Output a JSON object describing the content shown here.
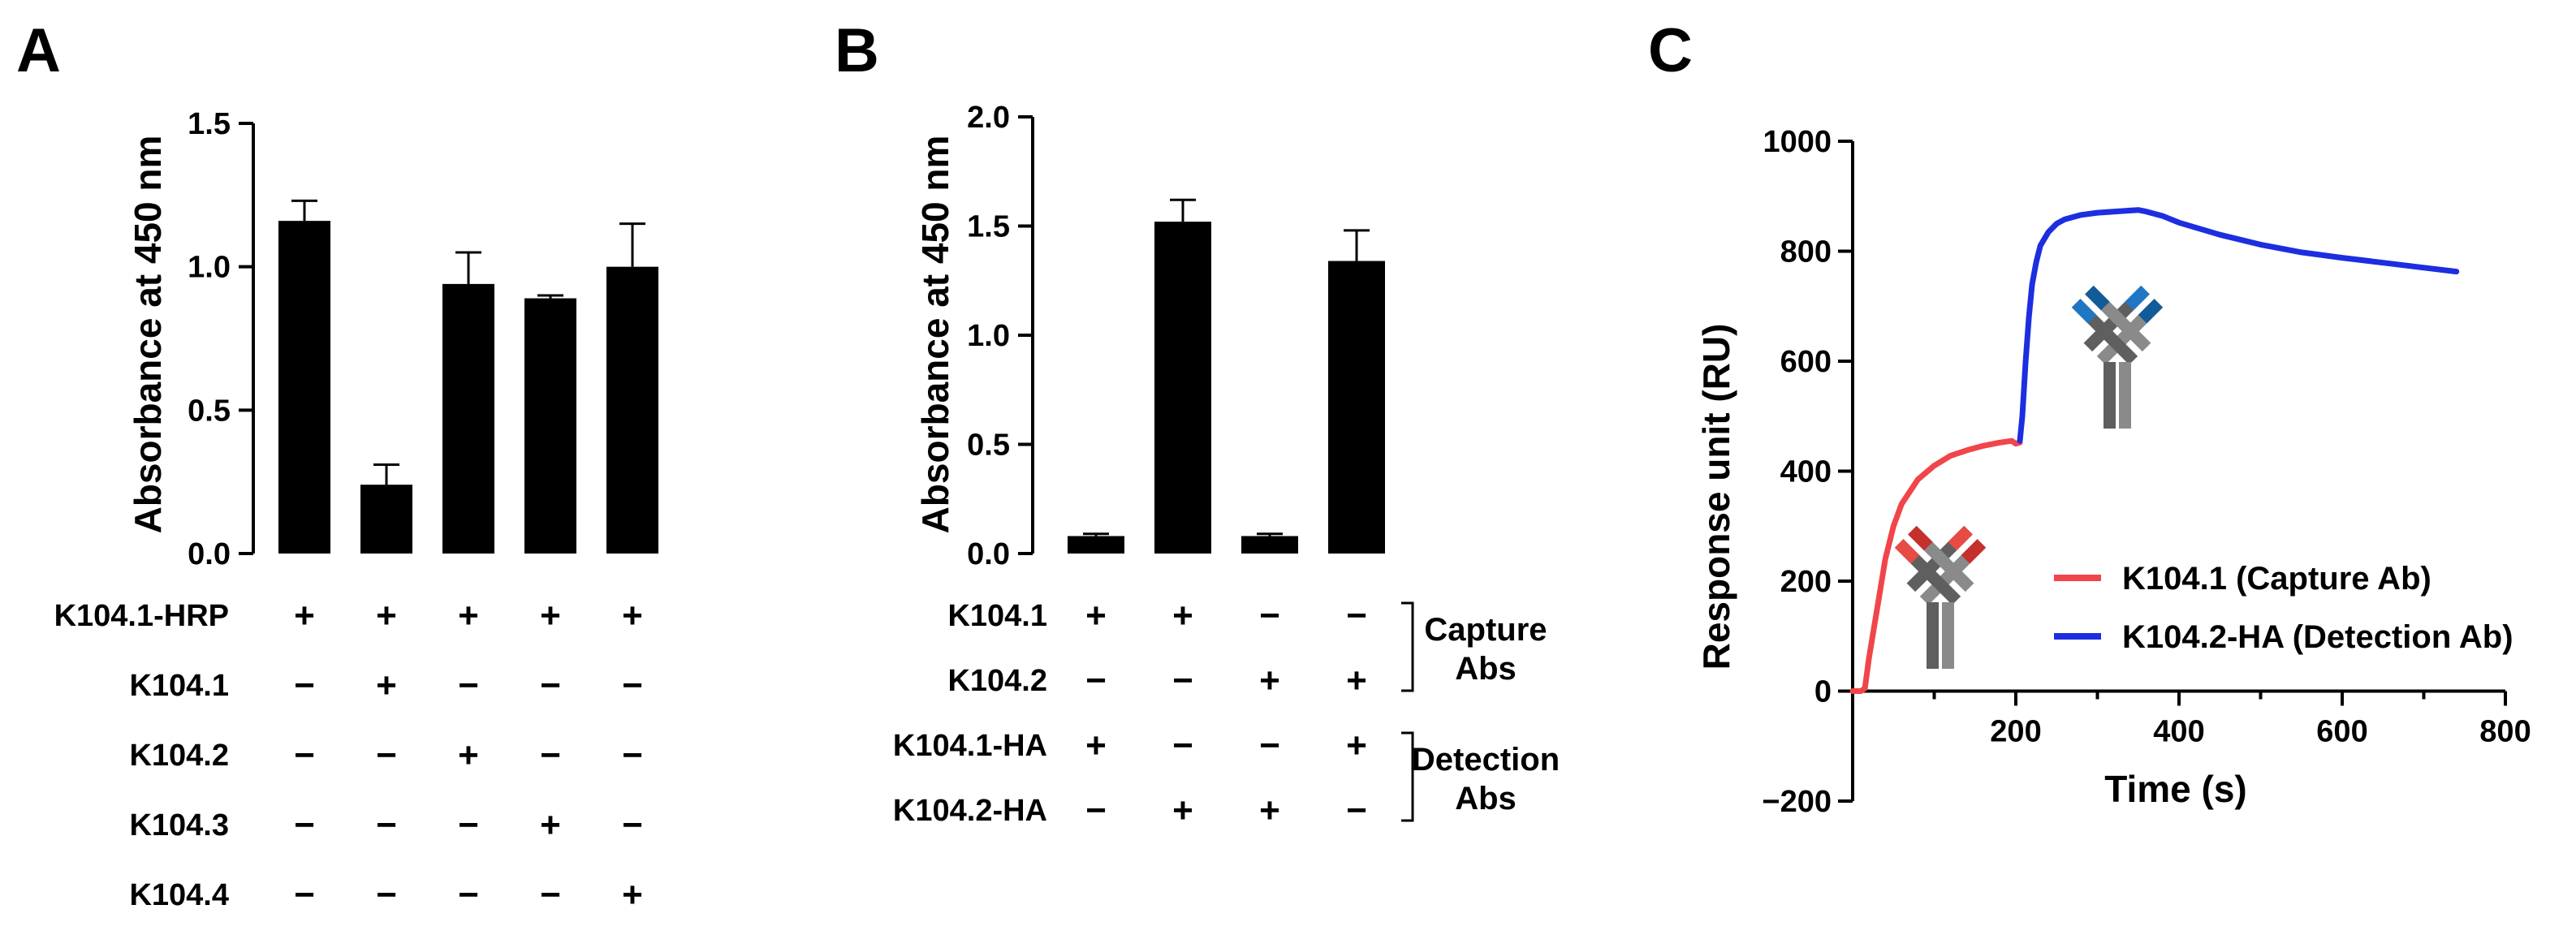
{
  "panels": {
    "a": "A",
    "b": "B",
    "c": "C"
  },
  "chart_data": [
    {
      "type": "bar",
      "panel": "A",
      "ylabel": "Absorbance at 450 nm",
      "ylim": [
        0,
        1.5
      ],
      "yticks": [
        "0.0",
        "0.5",
        "1.0",
        "1.5"
      ],
      "values": [
        1.16,
        0.24,
        0.94,
        0.89,
        1.0
      ],
      "errors": [
        0.07,
        0.07,
        0.11,
        0.01,
        0.15
      ],
      "bar_color": "#000000",
      "table": {
        "rows": [
          {
            "label": "K104.1-HRP",
            "signs": [
              "+",
              "+",
              "+",
              "+",
              "+"
            ]
          },
          {
            "label": "K104.1",
            "signs": [
              "−",
              "+",
              "−",
              "−",
              "−"
            ]
          },
          {
            "label": "K104.2",
            "signs": [
              "−",
              "−",
              "+",
              "−",
              "−"
            ]
          },
          {
            "label": "K104.3",
            "signs": [
              "−",
              "−",
              "−",
              "+",
              "−"
            ]
          },
          {
            "label": "K104.4",
            "signs": [
              "−",
              "−",
              "−",
              "−",
              "+"
            ]
          }
        ]
      }
    },
    {
      "type": "bar",
      "panel": "B",
      "ylabel": "Absorbance at 450 nm",
      "ylim": [
        0,
        2.0
      ],
      "yticks": [
        "0.0",
        "0.5",
        "1.0",
        "1.5",
        "2.0"
      ],
      "values": [
        0.08,
        1.52,
        0.08,
        1.34
      ],
      "errors": [
        0.01,
        0.1,
        0.01,
        0.14
      ],
      "bar_color": "#000000",
      "table": {
        "rows": [
          {
            "label": "K104.1",
            "signs": [
              "+",
              "+",
              "−",
              "−"
            ]
          },
          {
            "label": "K104.2",
            "signs": [
              "−",
              "−",
              "+",
              "+"
            ]
          },
          {
            "label": "K104.1-HA",
            "signs": [
              "+",
              "−",
              "−",
              "+"
            ]
          },
          {
            "label": "K104.2-HA",
            "signs": [
              "−",
              "+",
              "+",
              "−"
            ]
          }
        ],
        "groups": [
          {
            "line1": "Capture",
            "line2": "Abs"
          },
          {
            "line1": "Detection",
            "line2": "Abs"
          }
        ]
      }
    },
    {
      "type": "line",
      "panel": "C",
      "xlabel": "Time (s)",
      "ylabel": "Response unit (RU)",
      "xlim": [
        0,
        800
      ],
      "ylim": [
        -200,
        1000
      ],
      "xticks": [
        "200",
        "400",
        "600",
        "800"
      ],
      "yticks": [
        "−200",
        "0",
        "200",
        "400",
        "600",
        "800",
        "1000"
      ],
      "legend_position": "lower-right",
      "series": [
        {
          "name": "K104.1 (Capture Ab)",
          "color": "#f0454a",
          "x": [
            0,
            10,
            15,
            20,
            30,
            40,
            50,
            60,
            80,
            100,
            120,
            140,
            160,
            180,
            195,
            200,
            205
          ],
          "y": [
            0,
            0,
            5,
            60,
            150,
            240,
            300,
            340,
            385,
            410,
            428,
            438,
            446,
            452,
            455,
            450,
            452
          ]
        },
        {
          "name": "K104.2-HA (Detection Ab)",
          "color": "#1d2ee0",
          "x": [
            205,
            208,
            212,
            216,
            220,
            225,
            230,
            240,
            250,
            260,
            280,
            300,
            320,
            340,
            350,
            360,
            380,
            400,
            450,
            500,
            550,
            600,
            650,
            700,
            740
          ],
          "y": [
            455,
            500,
            600,
            680,
            740,
            780,
            810,
            835,
            850,
            858,
            866,
            870,
            872,
            874,
            875,
            872,
            864,
            852,
            830,
            812,
            798,
            788,
            779,
            770,
            763
          ]
        }
      ]
    }
  ]
}
